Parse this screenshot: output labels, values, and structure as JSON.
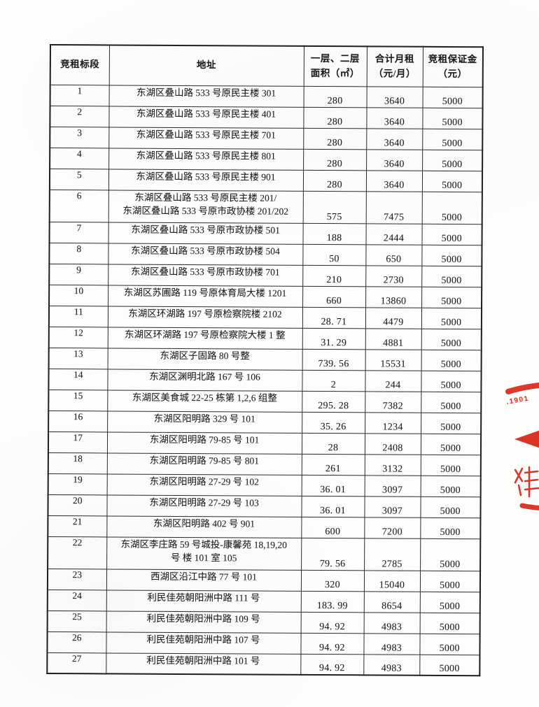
{
  "table": {
    "headers": [
      {
        "id": "no",
        "label": "竞租标段"
      },
      {
        "id": "address",
        "label": "地址"
      },
      {
        "id": "area",
        "label": "一层、二层\n面积（㎡）"
      },
      {
        "id": "rent",
        "label": "合计月租\n（元/月）"
      },
      {
        "id": "deposit",
        "label": "竞租保证金\n（元）"
      }
    ],
    "rows": [
      {
        "no": "1",
        "address": "东湖区叠山路 533 号原民主楼 301",
        "area": "280",
        "rent": "3640",
        "deposit": "5000"
      },
      {
        "no": "2",
        "address": "东湖区叠山路 533 号原民主楼 401",
        "area": "280",
        "rent": "3640",
        "deposit": "5000"
      },
      {
        "no": "3",
        "address": "东湖区叠山路 533 号原民主楼 701",
        "area": "280",
        "rent": "3640",
        "deposit": "5000"
      },
      {
        "no": "4",
        "address": "东湖区叠山路 533 号原民主楼 801",
        "area": "280",
        "rent": "3640",
        "deposit": "5000"
      },
      {
        "no": "5",
        "address": "东湖区叠山路 533 号原民主楼 901",
        "area": "280",
        "rent": "3640",
        "deposit": "5000"
      },
      {
        "no": "6",
        "address": "东湖区叠山路 533 号原民主楼 201/\n东湖区叠山路 533 号原市政协楼 201/202",
        "area": "575",
        "rent": "7475",
        "deposit": "5000"
      },
      {
        "no": "7",
        "address": "东湖区叠山路 533 号原市政协楼 501",
        "area": "188",
        "rent": "2444",
        "deposit": "5000"
      },
      {
        "no": "8",
        "address": "东湖区叠山路 533 号原市政协楼 504",
        "area": "50",
        "rent": "650",
        "deposit": "5000"
      },
      {
        "no": "9",
        "address": "东湖区叠山路 533 号原市政协楼 701",
        "area": "210",
        "rent": "2730",
        "deposit": "5000"
      },
      {
        "no": "10",
        "address": "东湖区苏圃路 119 号原体育局大楼 1201",
        "area": "660",
        "rent": "13860",
        "deposit": "5000"
      },
      {
        "no": "11",
        "address": "东湖区环湖路 197 号原检察院楼 2102",
        "area": "28. 71",
        "rent": "4479",
        "deposit": "5000"
      },
      {
        "no": "12",
        "address": "东湖区环湖路 197 号原检察院大楼 1 整",
        "area": "31. 29",
        "rent": "4881",
        "deposit": "5000"
      },
      {
        "no": "13",
        "address": "东湖区子固路 80 号整",
        "area": "739. 56",
        "rent": "15531",
        "deposit": "5000"
      },
      {
        "no": "14",
        "address": "东湖区渊明北路 167 号 106",
        "area": "2",
        "rent": "244",
        "deposit": "5000"
      },
      {
        "no": "15",
        "address": "东湖区美食城 22-25 栋第 1,2,6 组整",
        "area": "295. 28",
        "rent": "7382",
        "deposit": "5000"
      },
      {
        "no": "16",
        "address": "东湖区阳明路 329 号 101",
        "area": "35. 26",
        "rent": "1234",
        "deposit": "5000"
      },
      {
        "no": "17",
        "address": "东湖区阳明路 79-85 号 101",
        "area": "28",
        "rent": "2408",
        "deposit": "5000"
      },
      {
        "no": "18",
        "address": "东湖区阳明路 79-85 号 801",
        "area": "261",
        "rent": "3132",
        "deposit": "5000"
      },
      {
        "no": "19",
        "address": "东湖区阳明路 27-29 号 102",
        "area": "36. 01",
        "rent": "3097",
        "deposit": "5000"
      },
      {
        "no": "20",
        "address": "东湖区阳明路 27-29 号 103",
        "area": "36. 01",
        "rent": "3097",
        "deposit": "5000"
      },
      {
        "no": "21",
        "address": "东湖区阳明路 402 号 901",
        "area": "600",
        "rent": "7200",
        "deposit": "5000"
      },
      {
        "no": "22",
        "address": "东湖区李庄路 59 号城投-康馨苑 18,19,20\n号 楼 101 室 105",
        "area": "79. 56",
        "rent": "2785",
        "deposit": "5000"
      },
      {
        "no": "23",
        "address": "西湖区沿江中路 77 号 101",
        "area": "320",
        "rent": "15040",
        "deposit": "5000"
      },
      {
        "no": "24",
        "address": "利民佳苑朝阳洲中路 111 号",
        "area": "183. 99",
        "rent": "8654",
        "deposit": "5000"
      },
      {
        "no": "25",
        "address": "利民佳苑朝阳洲中路 109 号",
        "area": "94. 92",
        "rent": "4983",
        "deposit": "5000"
      },
      {
        "no": "26",
        "address": "利民佳苑朝阳洲中路 107 号",
        "area": "94. 92",
        "rent": "4983",
        "deposit": "5000"
      },
      {
        "no": "27",
        "address": "利民佳苑朝阳洲中路 101 号",
        "area": "94. 92",
        "rent": "4983",
        "deposit": "5000"
      }
    ]
  },
  "stamp": {
    "color": "#d9291b",
    "arc_text": ".1901"
  }
}
